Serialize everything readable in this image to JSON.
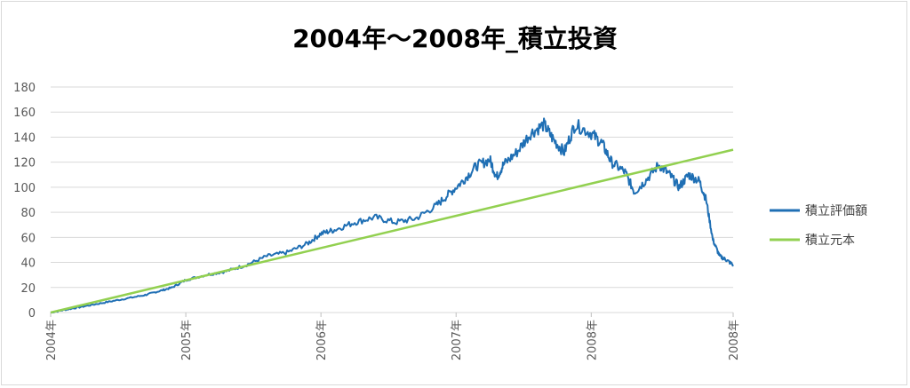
{
  "chart_data": {
    "type": "line",
    "title": "2004年～2008年_積立投資",
    "xlabel": "",
    "ylabel": "",
    "ylim": [
      0,
      180
    ],
    "yticks": [
      0,
      20,
      40,
      60,
      80,
      100,
      120,
      140,
      160,
      180
    ],
    "xticks": [
      "2004年",
      "2005年",
      "2006年",
      "2007年",
      "2008年",
      "2008年"
    ],
    "grid": true,
    "legend_position": "right",
    "series": [
      {
        "name": "積立評価額",
        "color": "#1f6fb4",
        "points": [
          [
            0,
            0
          ],
          [
            0.12,
            2.5
          ],
          [
            0.25,
            5
          ],
          [
            0.4,
            8
          ],
          [
            0.55,
            11
          ],
          [
            0.7,
            14
          ],
          [
            0.8,
            17
          ],
          [
            0.9,
            20
          ],
          [
            1.0,
            26
          ],
          [
            1.15,
            30
          ],
          [
            1.3,
            33
          ],
          [
            1.45,
            38
          ],
          [
            1.6,
            45
          ],
          [
            1.75,
            48
          ],
          [
            1.9,
            55
          ],
          [
            2.0,
            63
          ],
          [
            2.1,
            66
          ],
          [
            2.25,
            72
          ],
          [
            2.4,
            76
          ],
          [
            2.55,
            72
          ],
          [
            2.7,
            75
          ],
          [
            2.85,
            85
          ],
          [
            2.95,
            95
          ],
          [
            3.05,
            105
          ],
          [
            3.15,
            117
          ],
          [
            3.25,
            122
          ],
          [
            3.3,
            108
          ],
          [
            3.35,
            118
          ],
          [
            3.45,
            128
          ],
          [
            3.55,
            143
          ],
          [
            3.65,
            150
          ],
          [
            3.72,
            138
          ],
          [
            3.8,
            128
          ],
          [
            3.88,
            150
          ],
          [
            4.0,
            143
          ],
          [
            4.08,
            135
          ],
          [
            4.15,
            120
          ],
          [
            4.25,
            112
          ],
          [
            4.32,
            96
          ],
          [
            4.4,
            105
          ],
          [
            4.5,
            118
          ],
          [
            4.58,
            110
          ],
          [
            4.65,
            100
          ],
          [
            4.72,
            110
          ],
          [
            4.8,
            105
          ],
          [
            4.85,
            90
          ],
          [
            4.9,
            58
          ],
          [
            4.95,
            45
          ],
          [
            5.0,
            42
          ],
          [
            5.05,
            38
          ]
        ]
      },
      {
        "name": "積立元本",
        "color": "#92d050",
        "points": [
          [
            0,
            0
          ],
          [
            5.05,
            130
          ]
        ]
      }
    ]
  }
}
